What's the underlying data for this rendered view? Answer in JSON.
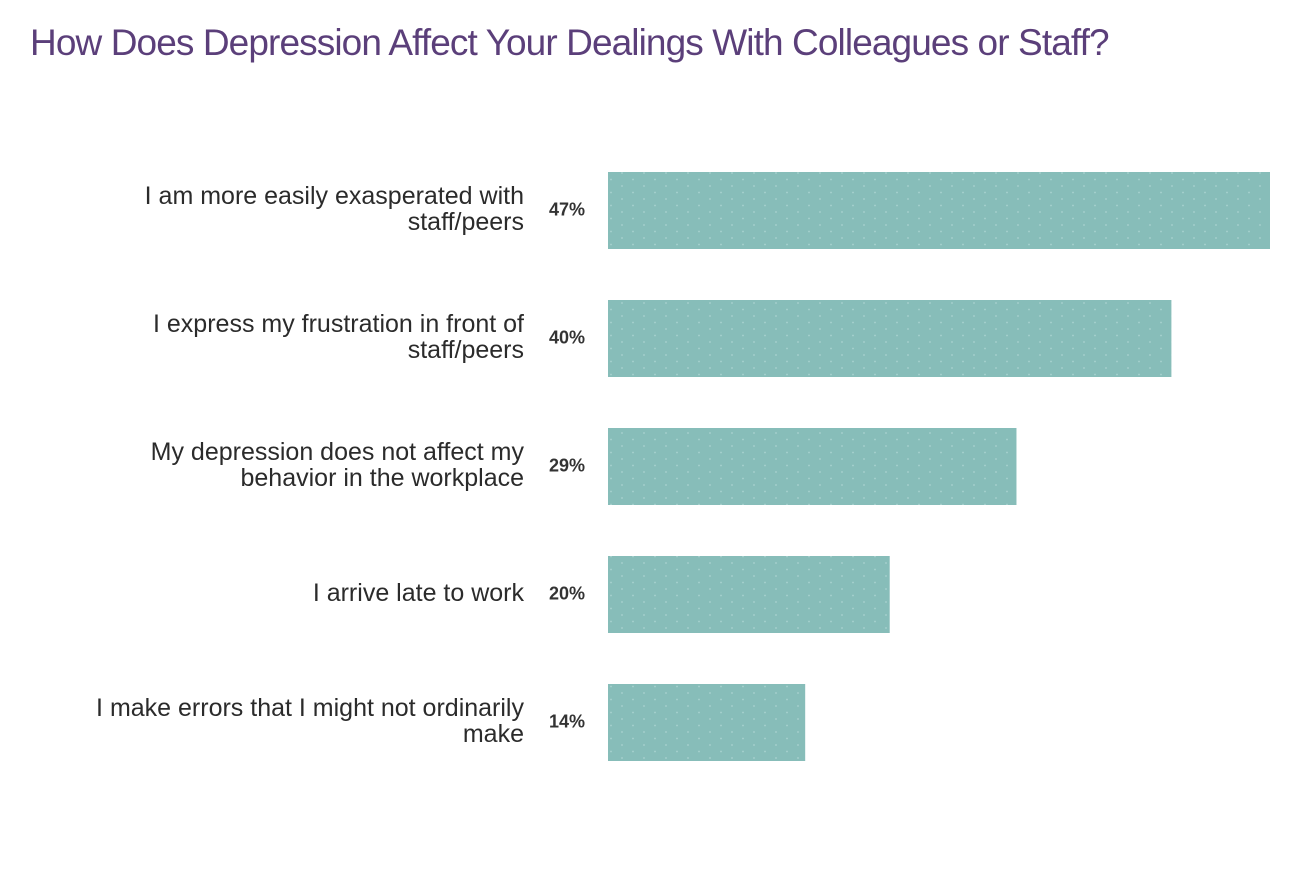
{
  "chart_data": {
    "type": "bar",
    "orientation": "horizontal",
    "title": "How Does Depression Affect Your Dealings With Colleagues or Staff?",
    "categories": [
      [
        "I am more easily exasperated with",
        "staff/peers"
      ],
      [
        "I express my frustration in front of",
        "staff/peers"
      ],
      [
        "My depression does not affect my",
        "behavior in the workplace"
      ],
      [
        "I arrive late to work"
      ],
      [
        "I make errors that I might not ordinarily",
        "make"
      ]
    ],
    "values": [
      47,
      40,
      29,
      20,
      14
    ],
    "value_labels": [
      "47%",
      "40%",
      "29%",
      "20%",
      "14%"
    ],
    "xlim": [
      0,
      47
    ],
    "grid": false,
    "legend": "none",
    "colors": {
      "bar": "#87bdb9",
      "bar_dots": "#a9d2cf",
      "title": "#5b3f7a",
      "text": "#2b2b2b"
    }
  }
}
